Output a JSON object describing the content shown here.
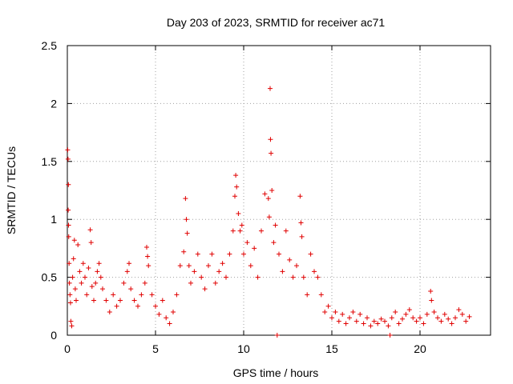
{
  "chart_data": {
    "type": "scatter",
    "title": "Day 203 of 2023, SRMTID for receiver ac71",
    "xlabel": "GPS time / hours",
    "ylabel": "SRMTID / TECUs",
    "xlim": [
      0,
      24
    ],
    "ylim": [
      0,
      2.5
    ],
    "xticks": [
      0,
      5,
      10,
      15,
      20
    ],
    "yticks": [
      0,
      0.5,
      1,
      1.5,
      2,
      2.5
    ],
    "xtick_labels": [
      "0",
      "5",
      "10",
      "15",
      "20"
    ],
    "ytick_labels": [
      "0",
      "0.5",
      "1",
      "1.5",
      "2",
      "2.5"
    ],
    "grid": true,
    "marker": "+",
    "color": "#e00000",
    "series": [
      {
        "name": "SRMTID",
        "points": [
          [
            0.02,
            1.6
          ],
          [
            0.04,
            1.52
          ],
          [
            0.06,
            1.3
          ],
          [
            0.05,
            1.08
          ],
          [
            0.07,
            0.95
          ],
          [
            0.08,
            0.85
          ],
          [
            0.1,
            0.62
          ],
          [
            0.12,
            0.45
          ],
          [
            0.15,
            0.35
          ],
          [
            0.18,
            0.28
          ],
          [
            0.2,
            0.12
          ],
          [
            0.25,
            0.08
          ],
          [
            0.3,
            0.5
          ],
          [
            0.35,
            0.66
          ],
          [
            0.4,
            0.82
          ],
          [
            0.45,
            0.4
          ],
          [
            0.5,
            0.3
          ],
          [
            0.6,
            0.78
          ],
          [
            0.7,
            0.55
          ],
          [
            0.8,
            0.45
          ],
          [
            0.9,
            0.62
          ],
          [
            1.0,
            0.5
          ],
          [
            1.1,
            0.35
          ],
          [
            1.2,
            0.58
          ],
          [
            1.3,
            0.91
          ],
          [
            1.35,
            0.8
          ],
          [
            1.4,
            0.42
          ],
          [
            1.5,
            0.3
          ],
          [
            1.6,
            0.45
          ],
          [
            1.7,
            0.55
          ],
          [
            1.8,
            0.62
          ],
          [
            1.9,
            0.5
          ],
          [
            2.0,
            0.4
          ],
          [
            2.2,
            0.3
          ],
          [
            2.4,
            0.2
          ],
          [
            2.6,
            0.35
          ],
          [
            2.8,
            0.25
          ],
          [
            3.0,
            0.3
          ],
          [
            3.2,
            0.45
          ],
          [
            3.4,
            0.55
          ],
          [
            3.5,
            0.62
          ],
          [
            3.6,
            0.4
          ],
          [
            3.8,
            0.3
          ],
          [
            4.0,
            0.25
          ],
          [
            4.2,
            0.35
          ],
          [
            4.4,
            0.45
          ],
          [
            4.5,
            0.76
          ],
          [
            4.55,
            0.68
          ],
          [
            4.6,
            0.6
          ],
          [
            4.8,
            0.35
          ],
          [
            5.0,
            0.25
          ],
          [
            5.2,
            0.18
          ],
          [
            5.4,
            0.3
          ],
          [
            5.6,
            0.15
          ],
          [
            5.8,
            0.1
          ],
          [
            6.0,
            0.2
          ],
          [
            6.2,
            0.35
          ],
          [
            6.4,
            0.6
          ],
          [
            6.6,
            0.72
          ],
          [
            6.7,
            1.18
          ],
          [
            6.75,
            1.0
          ],
          [
            6.8,
            0.88
          ],
          [
            6.9,
            0.6
          ],
          [
            7.0,
            0.45
          ],
          [
            7.2,
            0.55
          ],
          [
            7.4,
            0.7
          ],
          [
            7.6,
            0.5
          ],
          [
            7.8,
            0.4
          ],
          [
            8.0,
            0.6
          ],
          [
            8.2,
            0.7
          ],
          [
            8.4,
            0.45
          ],
          [
            8.6,
            0.55
          ],
          [
            8.8,
            0.62
          ],
          [
            9.0,
            0.5
          ],
          [
            9.2,
            0.7
          ],
          [
            9.4,
            0.9
          ],
          [
            9.5,
            1.2
          ],
          [
            9.55,
            1.38
          ],
          [
            9.6,
            1.28
          ],
          [
            9.7,
            1.05
          ],
          [
            9.8,
            0.9
          ],
          [
            9.9,
            0.95
          ],
          [
            10.0,
            0.7
          ],
          [
            10.2,
            0.8
          ],
          [
            10.4,
            0.6
          ],
          [
            10.6,
            0.75
          ],
          [
            10.8,
            0.5
          ],
          [
            11.0,
            0.9
          ],
          [
            11.2,
            1.22
          ],
          [
            11.4,
            1.18
          ],
          [
            11.45,
            1.02
          ],
          [
            11.5,
            2.13
          ],
          [
            11.52,
            1.69
          ],
          [
            11.55,
            1.57
          ],
          [
            11.6,
            1.25
          ],
          [
            11.7,
            0.8
          ],
          [
            11.8,
            0.95
          ],
          [
            12.0,
            0.7
          ],
          [
            12.2,
            0.55
          ],
          [
            12.4,
            0.9
          ],
          [
            12.6,
            0.65
          ],
          [
            12.8,
            0.5
          ],
          [
            13.0,
            0.6
          ],
          [
            13.2,
            1.2
          ],
          [
            13.25,
            0.97
          ],
          [
            13.3,
            0.85
          ],
          [
            13.4,
            0.5
          ],
          [
            13.6,
            0.35
          ],
          [
            13.8,
            0.7
          ],
          [
            14.0,
            0.55
          ],
          [
            14.2,
            0.5
          ],
          [
            14.4,
            0.35
          ],
          [
            14.6,
            0.2
          ],
          [
            14.8,
            0.25
          ],
          [
            15.0,
            0.15
          ],
          [
            15.2,
            0.2
          ],
          [
            15.4,
            0.12
          ],
          [
            15.6,
            0.18
          ],
          [
            15.8,
            0.1
          ],
          [
            16.0,
            0.15
          ],
          [
            16.2,
            0.2
          ],
          [
            16.4,
            0.12
          ],
          [
            16.6,
            0.18
          ],
          [
            16.8,
            0.1
          ],
          [
            17.0,
            0.15
          ],
          [
            17.2,
            0.08
          ],
          [
            17.4,
            0.12
          ],
          [
            17.6,
            0.1
          ],
          [
            17.8,
            0.14
          ],
          [
            18.0,
            0.12
          ],
          [
            18.2,
            0.08
          ],
          [
            18.4,
            0.15
          ],
          [
            18.6,
            0.2
          ],
          [
            18.8,
            0.1
          ],
          [
            19.0,
            0.14
          ],
          [
            19.2,
            0.18
          ],
          [
            19.4,
            0.22
          ],
          [
            19.6,
            0.15
          ],
          [
            19.8,
            0.12
          ],
          [
            20.0,
            0.15
          ],
          [
            20.2,
            0.1
          ],
          [
            20.4,
            0.18
          ],
          [
            20.6,
            0.38
          ],
          [
            20.65,
            0.3
          ],
          [
            20.8,
            0.2
          ],
          [
            21.0,
            0.15
          ],
          [
            21.2,
            0.12
          ],
          [
            21.4,
            0.18
          ],
          [
            21.6,
            0.14
          ],
          [
            21.8,
            0.1
          ],
          [
            22.0,
            0.15
          ],
          [
            22.2,
            0.22
          ],
          [
            22.4,
            0.18
          ],
          [
            22.6,
            0.12
          ],
          [
            22.8,
            0.16
          ],
          [
            11.9,
            0.0
          ],
          [
            18.3,
            0.0
          ]
        ]
      }
    ]
  }
}
